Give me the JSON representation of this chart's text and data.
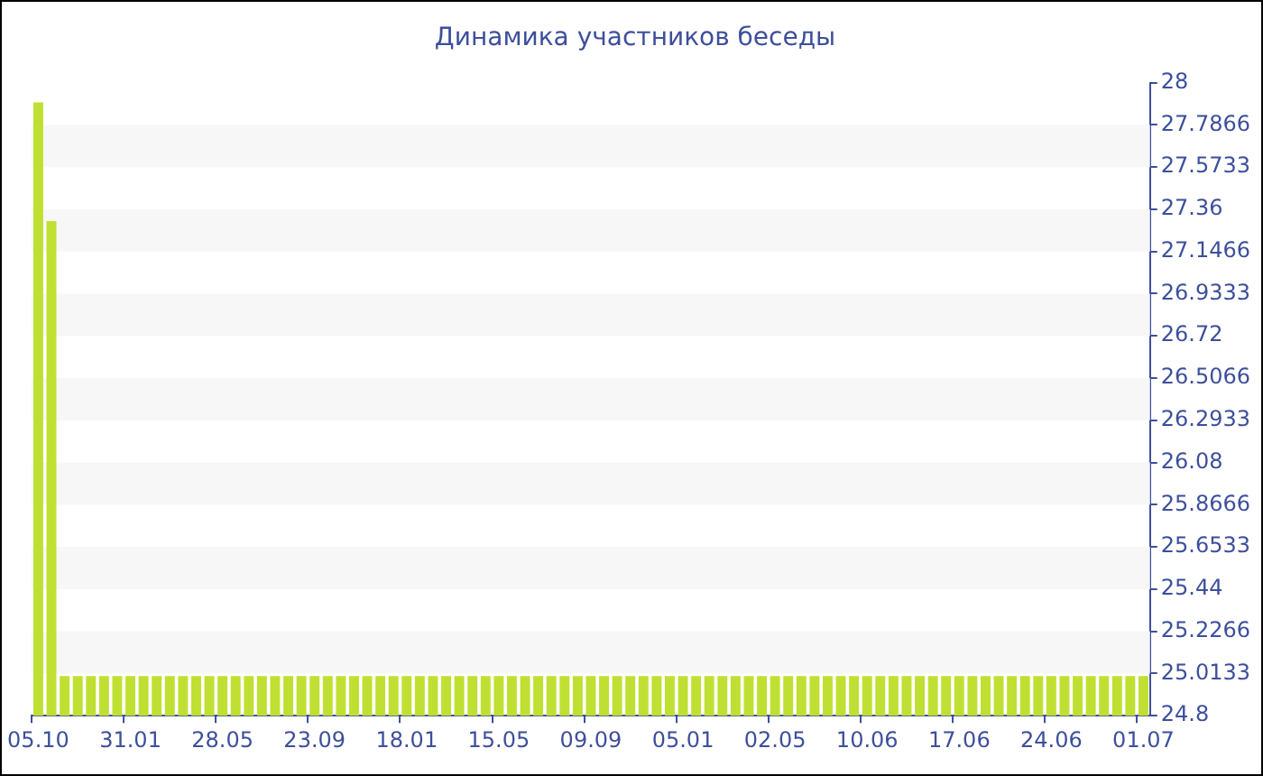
{
  "chart_data": {
    "type": "bar",
    "title": "Динамика участников беседы",
    "categories": [
      "05.10",
      null,
      null,
      null,
      null,
      null,
      null,
      "31.01",
      null,
      null,
      null,
      null,
      null,
      null,
      "28.05",
      null,
      null,
      null,
      null,
      null,
      null,
      "23.09",
      null,
      null,
      null,
      null,
      null,
      null,
      "18.01",
      null,
      null,
      null,
      null,
      null,
      null,
      "15.05",
      null,
      null,
      null,
      null,
      null,
      null,
      "09.09",
      null,
      null,
      null,
      null,
      null,
      null,
      "05.01",
      null,
      null,
      null,
      null,
      null,
      null,
      "02.05",
      null,
      null,
      null,
      null,
      null,
      null,
      "10.06",
      null,
      null,
      null,
      null,
      null,
      null,
      "17.06",
      null,
      null,
      null,
      null,
      null,
      null,
      "24.06",
      null,
      null,
      null,
      null,
      null,
      null,
      "01.07"
    ],
    "values": [
      27.9,
      27.3,
      25,
      25,
      25,
      25,
      25,
      25,
      25,
      25,
      25,
      25,
      25,
      25,
      25,
      25,
      25,
      25,
      25,
      25,
      25,
      25,
      25,
      25,
      25,
      25,
      25,
      25,
      25,
      25,
      25,
      25,
      25,
      25,
      25,
      25,
      25,
      25,
      25,
      25,
      25,
      25,
      25,
      25,
      25,
      25,
      25,
      25,
      25,
      25,
      25,
      25,
      25,
      25,
      25,
      25,
      25,
      25,
      25,
      25,
      25,
      25,
      25,
      25,
      25,
      25,
      25,
      25,
      25,
      25,
      25,
      25,
      25,
      25,
      25,
      25,
      25,
      25,
      25,
      25,
      25,
      25,
      25,
      25,
      25
    ],
    "color": "#bfe032",
    "ylim": [
      24.8,
      28
    ],
    "yticks": [
      24.8,
      25.0133,
      25.2266,
      25.44,
      25.6533,
      25.8666,
      26.08,
      26.2933,
      26.5066,
      26.72,
      26.9333,
      27.1466,
      27.36,
      27.5733,
      27.7866,
      28
    ],
    "bands": [
      {
        "axis": "y",
        "from": 27.5733,
        "to": 27.7866,
        "color": "#f7f7f7"
      },
      {
        "axis": "y",
        "from": 27.1466,
        "to": 27.36,
        "color": "#f7f7f7"
      },
      {
        "axis": "y",
        "from": 26.72,
        "to": 26.9333,
        "color": "#f7f7f7"
      },
      {
        "axis": "y",
        "from": 26.2933,
        "to": 26.5066,
        "color": "#f7f7f7"
      },
      {
        "axis": "y",
        "from": 25.8666,
        "to": 26.08,
        "color": "#f7f7f7"
      },
      {
        "axis": "y",
        "from": 25.44,
        "to": 25.6533,
        "color": "#f7f7f7"
      },
      {
        "axis": "y",
        "from": 25.0133,
        "to": 25.2266,
        "color": "#f7f7f7"
      }
    ]
  }
}
